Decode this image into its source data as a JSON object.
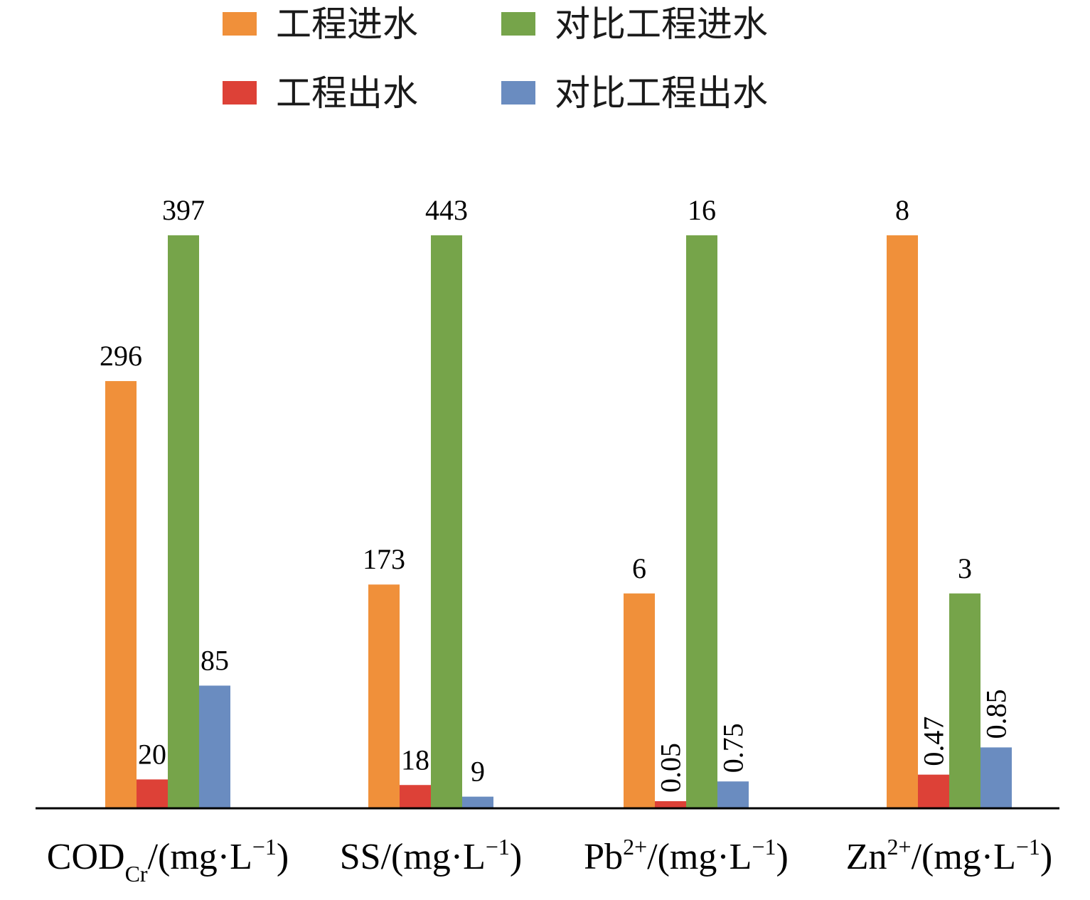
{
  "chart_data": {
    "type": "bar",
    "title": "",
    "xlabel": "",
    "ylabel": "",
    "grid": false,
    "legend_position": "top",
    "categories": [
      {
        "main": "COD",
        "sub": "Cr",
        "sup": "",
        "unit": "/(mg·L",
        "unit_sup": "−1",
        "close": ")"
      },
      {
        "main": "SS",
        "sub": "",
        "sup": "",
        "unit": "/(mg·L",
        "unit_sup": "−1",
        "close": ")"
      },
      {
        "main": "Pb",
        "sub": "",
        "sup": "2+",
        "unit": "/(mg·L",
        "unit_sup": "−1",
        "close": ")"
      },
      {
        "main": "Zn",
        "sub": "",
        "sup": "2+",
        "unit": "/(mg·L",
        "unit_sup": "−1",
        "close": ")"
      }
    ],
    "series": [
      {
        "name": "工程进水",
        "color": "#F0903A",
        "values": [
          296,
          173,
          6,
          8
        ],
        "labels": [
          "296",
          "173",
          "6",
          "8"
        ]
      },
      {
        "name": "工程出水",
        "color": "#DD4137",
        "values": [
          20,
          18,
          0.05,
          0.47
        ],
        "labels": [
          "20",
          "18",
          "0.05",
          "0.47"
        ]
      },
      {
        "name": "对比工程进水",
        "color": "#76A44A",
        "values": [
          397,
          443,
          16,
          3
        ],
        "labels": [
          "397",
          "443",
          "16",
          "3"
        ]
      },
      {
        "name": "对比工程出水",
        "color": "#6A8CC0",
        "values": [
          85,
          9,
          0.75,
          0.85
        ],
        "labels": [
          "85",
          "9",
          "0.75",
          "0.85"
        ]
      }
    ],
    "vertical_labels": [
      [
        false,
        false,
        false,
        false
      ],
      [
        false,
        false,
        true,
        true
      ],
      [
        false,
        false,
        false,
        false
      ],
      [
        false,
        false,
        true,
        true
      ]
    ]
  }
}
